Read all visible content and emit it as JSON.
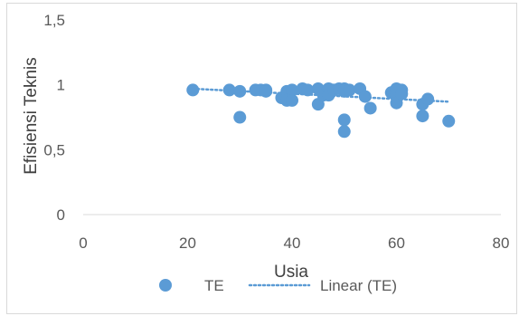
{
  "chart_data": {
    "type": "scatter",
    "xlabel": "Usia",
    "ylabel": "Efisiensi Teknis",
    "xlim": [
      0,
      80
    ],
    "ylim": [
      0,
      1.5
    ],
    "xticks": [
      "0",
      "20",
      "40",
      "60",
      "80"
    ],
    "yticks": [
      "0",
      "0,5",
      "1",
      "1,5"
    ],
    "grid": false,
    "legend_position": "bottom",
    "series": [
      {
        "name": "TE",
        "kind": "points",
        "color": "#5b9bd5",
        "points": [
          [
            21,
            0.96
          ],
          [
            28,
            0.96
          ],
          [
            30,
            0.95
          ],
          [
            30,
            0.75
          ],
          [
            33,
            0.96
          ],
          [
            34,
            0.96
          ],
          [
            35,
            0.96
          ],
          [
            35,
            0.95
          ],
          [
            38,
            0.9
          ],
          [
            39,
            0.95
          ],
          [
            39,
            0.88
          ],
          [
            40,
            0.96
          ],
          [
            40,
            0.88
          ],
          [
            42,
            0.97
          ],
          [
            43,
            0.96
          ],
          [
            45,
            0.97
          ],
          [
            45,
            0.85
          ],
          [
            46,
            0.92
          ],
          [
            47,
            0.97
          ],
          [
            47,
            0.92
          ],
          [
            48,
            0.96
          ],
          [
            49,
            0.97
          ],
          [
            50,
            0.97
          ],
          [
            50,
            0.95
          ],
          [
            50,
            0.73
          ],
          [
            50,
            0.64
          ],
          [
            51,
            0.96
          ],
          [
            53,
            0.97
          ],
          [
            54,
            0.91
          ],
          [
            55,
            0.82
          ],
          [
            59,
            0.94
          ],
          [
            60,
            0.97
          ],
          [
            60,
            0.92
          ],
          [
            60,
            0.86
          ],
          [
            61,
            0.96
          ],
          [
            61,
            0.93
          ],
          [
            65,
            0.85
          ],
          [
            65,
            0.76
          ],
          [
            66,
            0.89
          ],
          [
            70,
            0.72
          ]
        ]
      },
      {
        "name": "Linear (TE)",
        "kind": "trendline",
        "color": "#5b9bd5",
        "points": [
          [
            21,
            0.97
          ],
          [
            70,
            0.87
          ]
        ]
      }
    ]
  }
}
